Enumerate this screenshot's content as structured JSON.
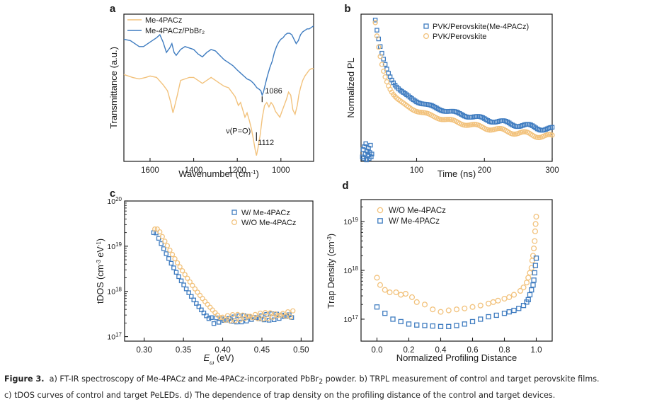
{
  "colors": {
    "blue": "#3f7cc0",
    "orange": "#f2c27c",
    "axis": "#1a1a1a"
  },
  "caption": {
    "label": "Figure 3.",
    "line1_pre": "a) FT-IR spectroscopy of Me-4PACz and Me-4PACz-incorporated PbBr",
    "line1_sub": "2",
    "line1_post": " powder. b) TRPL measurement of control and target perovskite films.",
    "line2": "c) tDOS curves of control and target PeLEDs. d) The dependence of trap density on the profiling distance of the control and target devices."
  },
  "chart_data": [
    {
      "panel": "a",
      "type": "line",
      "ylabel": "Transmittance (a.u.)",
      "xlabel": "Wavenumber (cm",
      "xlabel_sup": "-1",
      "xlabel_tail": ")",
      "xlim": [
        1720,
        850
      ],
      "ylim": [
        0,
        1
      ],
      "xticks": [
        1600,
        1400,
        1200,
        1000
      ],
      "annotations": [
        {
          "text": "1086",
          "x": 1086,
          "y": 0.47
        },
        {
          "text": "ν(P=O)",
          "x": 1112,
          "y": 0.21
        },
        {
          "text": "1112",
          "x": 1112,
          "y": 0.13
        }
      ],
      "legend": "top-left",
      "series": [
        {
          "name": "Me-4PACz",
          "color": "#f2c27c",
          "x": [
            1720,
            1680,
            1650,
            1620,
            1600,
            1570,
            1540,
            1520,
            1505,
            1495,
            1488,
            1475,
            1460,
            1440,
            1420,
            1400,
            1380,
            1360,
            1340,
            1320,
            1300,
            1280,
            1260,
            1240,
            1225,
            1210,
            1195,
            1185,
            1175,
            1165,
            1155,
            1145,
            1135,
            1125,
            1118,
            1112,
            1105,
            1095,
            1085,
            1075,
            1065,
            1055,
            1045,
            1035,
            1025,
            1015,
            1005,
            995,
            985,
            975,
            965,
            955,
            945,
            935,
            925,
            918,
            910,
            900,
            890,
            880,
            870,
            860,
            850
          ],
          "y": [
            0.59,
            0.57,
            0.56,
            0.57,
            0.58,
            0.57,
            0.52,
            0.48,
            0.4,
            0.33,
            0.37,
            0.45,
            0.55,
            0.56,
            0.57,
            0.57,
            0.55,
            0.53,
            0.55,
            0.57,
            0.55,
            0.53,
            0.51,
            0.5,
            0.47,
            0.44,
            0.38,
            0.4,
            0.35,
            0.3,
            0.33,
            0.28,
            0.22,
            0.14,
            0.08,
            0.04,
            0.09,
            0.18,
            0.3,
            0.38,
            0.4,
            0.37,
            0.4,
            0.38,
            0.34,
            0.32,
            0.3,
            0.34,
            0.38,
            0.42,
            0.47,
            0.45,
            0.35,
            0.32,
            0.38,
            0.45,
            0.5,
            0.55,
            0.58,
            0.6,
            0.62,
            0.63,
            0.63
          ]
        },
        {
          "name": "Me-4PACz/PbBr₂",
          "color": "#3f7cc0",
          "x": [
            1720,
            1690,
            1670,
            1650,
            1630,
            1610,
            1590,
            1570,
            1555,
            1540,
            1525,
            1510,
            1500,
            1490,
            1480,
            1460,
            1440,
            1420,
            1400,
            1380,
            1360,
            1340,
            1320,
            1300,
            1280,
            1260,
            1240,
            1220,
            1200,
            1185,
            1170,
            1155,
            1140,
            1125,
            1110,
            1100,
            1092,
            1086,
            1080,
            1072,
            1062,
            1050,
            1040,
            1030,
            1020,
            1010,
            1000,
            990,
            980,
            970,
            960,
            950,
            940,
            930,
            920,
            910,
            900,
            890,
            880,
            870,
            860,
            850
          ],
          "y": [
            0.83,
            0.82,
            0.8,
            0.78,
            0.78,
            0.8,
            0.82,
            0.84,
            0.86,
            0.81,
            0.74,
            0.77,
            0.8,
            0.74,
            0.72,
            0.76,
            0.78,
            0.77,
            0.76,
            0.73,
            0.71,
            0.74,
            0.76,
            0.75,
            0.72,
            0.69,
            0.67,
            0.65,
            0.62,
            0.6,
            0.58,
            0.56,
            0.55,
            0.53,
            0.5,
            0.49,
            0.48,
            0.45,
            0.47,
            0.52,
            0.58,
            0.64,
            0.68,
            0.74,
            0.78,
            0.81,
            0.83,
            0.84,
            0.86,
            0.87,
            0.87,
            0.86,
            0.83,
            0.8,
            0.82,
            0.86,
            0.88,
            0.89,
            0.9,
            0.9,
            0.91,
            0.92
          ]
        }
      ]
    },
    {
      "panel": "b",
      "type": "scatter",
      "ylabel": "Normalized PL",
      "xlabel": "Time (ns)",
      "xlim": [
        18,
        300
      ],
      "ylim": [
        0,
        1
      ],
      "xticks": [
        100,
        200,
        300
      ],
      "legend": "top-right",
      "series": [
        {
          "name": "PVK/Perovskite(Me-4PACz)",
          "color": "#3f7cc0",
          "marker": "square",
          "model": {
            "t0": 39,
            "a1": 0.5,
            "tau1": 15,
            "a2": 0.5,
            "tau2": 240
          }
        },
        {
          "name": "PVK/Perovskite",
          "color": "#f2c27c",
          "marker": "circle",
          "model": {
            "t0": 39,
            "a1": 0.55,
            "tau1": 12,
            "a2": 0.45,
            "tau2": 210
          }
        }
      ],
      "pre_pulse_points": [
        [
          20,
          0.03
        ],
        [
          21,
          0.08
        ],
        [
          22,
          0.02
        ],
        [
          23,
          0.1
        ],
        [
          24,
          0.05
        ],
        [
          25,
          0.12
        ],
        [
          26,
          0.01
        ],
        [
          27,
          0.07
        ],
        [
          28,
          0.04
        ],
        [
          29,
          0.09
        ],
        [
          30,
          0.02
        ],
        [
          31,
          0.06
        ],
        [
          32,
          0.11
        ],
        [
          33,
          0.03
        ],
        [
          34,
          0.05
        ]
      ]
    },
    {
      "panel": "c",
      "type": "scatter",
      "ylabel": "tDOS (cm",
      "ylabel_sup1": "-3",
      "ylabel_mid": " eV",
      "ylabel_sup2": "-1",
      "ylabel_tail": ")",
      "xlabel": "E",
      "xlabel_sub": "ω",
      "xlabel_tail": " (eV)",
      "xlim": [
        0.275,
        0.515
      ],
      "ylim_log": [
        16.9,
        20
      ],
      "xticks": [
        0.3,
        0.35,
        0.4,
        0.45,
        0.5
      ],
      "yticks": [
        17,
        18,
        19,
        20
      ],
      "legend": "top-right",
      "series": [
        {
          "name": "W/ Me-4PACz",
          "color": "#3f7cc0",
          "marker": "square",
          "model": {
            "e0": 0.315,
            "e1": 0.385,
            "top": 19.3,
            "floor": 17.35
          }
        },
        {
          "name": "W/O Me-4PACz",
          "color": "#f2c27c",
          "marker": "circle",
          "model": {
            "e0": 0.318,
            "e1": 0.398,
            "top": 19.38,
            "floor": 17.4
          }
        }
      ]
    },
    {
      "panel": "d",
      "type": "scatter",
      "ylabel": "Trap Density (cm",
      "ylabel_sup": "-3",
      "ylabel_tail": ")",
      "xlabel": "Normalized Profiling Distance",
      "xlim": [
        -0.1,
        1.1
      ],
      "ylim_log": [
        16.55,
        19.45
      ],
      "xticks": [
        0.0,
        0.2,
        0.4,
        0.6,
        0.8,
        1.0
      ],
      "yticks": [
        17,
        18,
        19
      ],
      "legend": "top-left",
      "series": [
        {
          "name": "W/O Me-4PACz",
          "color": "#f2c27c",
          "marker": "circle",
          "x": [
            0.0,
            0.02,
            0.05,
            0.08,
            0.12,
            0.15,
            0.18,
            0.22,
            0.25,
            0.3,
            0.35,
            0.4,
            0.45,
            0.5,
            0.55,
            0.6,
            0.65,
            0.7,
            0.73,
            0.76,
            0.8,
            0.83,
            0.86,
            0.9,
            0.92,
            0.94,
            0.95,
            0.96,
            0.97,
            0.975,
            0.98,
            0.985,
            0.99,
            0.993,
            0.996,
            1.0
          ],
          "y": [
            17.85,
            17.7,
            17.6,
            17.55,
            17.55,
            17.5,
            17.52,
            17.45,
            17.35,
            17.3,
            17.2,
            17.15,
            17.18,
            17.2,
            17.22,
            17.25,
            17.28,
            17.32,
            17.35,
            17.38,
            17.42,
            17.45,
            17.5,
            17.58,
            17.65,
            17.75,
            17.85,
            17.95,
            18.05,
            18.2,
            18.3,
            18.45,
            18.6,
            18.8,
            18.95,
            19.1
          ]
        },
        {
          "name": "W/ Me-4PACz",
          "color": "#3f7cc0",
          "marker": "square",
          "x": [
            0.0,
            0.05,
            0.1,
            0.15,
            0.2,
            0.25,
            0.3,
            0.35,
            0.4,
            0.45,
            0.5,
            0.55,
            0.6,
            0.65,
            0.7,
            0.75,
            0.8,
            0.83,
            0.86,
            0.89,
            0.92,
            0.94,
            0.95,
            0.96,
            0.97,
            0.98,
            0.985,
            0.99,
            0.995,
            1.0
          ],
          "y": [
            17.25,
            17.12,
            17.0,
            16.95,
            16.9,
            16.88,
            16.87,
            16.86,
            16.85,
            16.85,
            16.87,
            16.9,
            16.95,
            17.0,
            17.05,
            17.08,
            17.12,
            17.15,
            17.18,
            17.22,
            17.28,
            17.35,
            17.4,
            17.5,
            17.6,
            17.7,
            17.8,
            17.95,
            18.1,
            18.25
          ]
        }
      ]
    }
  ]
}
